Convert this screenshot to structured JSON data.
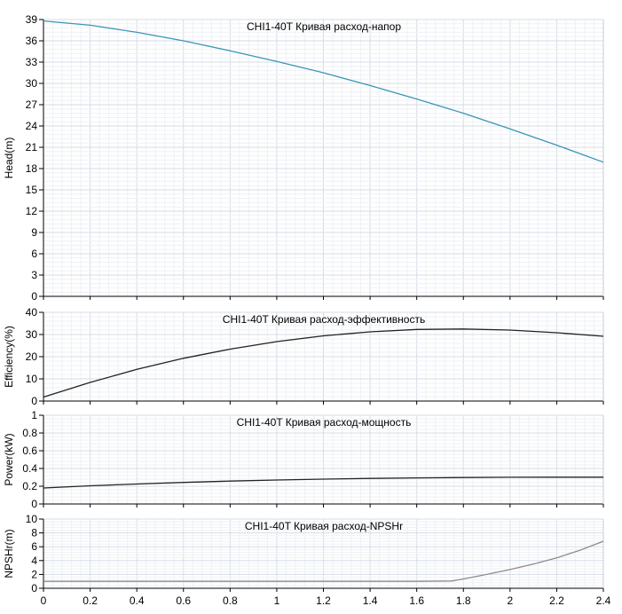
{
  "chart_data": [
    {
      "type": "line",
      "title": "CHI1-40T Кривая расход-напор",
      "ylabel": "Head(m)",
      "xlabel": "",
      "xlim": [
        0,
        2.4
      ],
      "ylim": [
        0,
        39
      ],
      "grid": true,
      "x_ticks": [
        "0",
        "0.2",
        "0.4",
        "0.6",
        "0.8",
        "1",
        "1.2",
        "1.4",
        "1.6",
        "1.8",
        "2",
        "2.2",
        "2.4"
      ],
      "y_ticks": [
        "0",
        "3",
        "6",
        "9",
        "12",
        "15",
        "18",
        "21",
        "24",
        "27",
        "30",
        "33",
        "36",
        "39"
      ],
      "series": [
        {
          "color": "#3a96b8",
          "x": [
            0,
            0.2,
            0.4,
            0.6,
            0.8,
            1.0,
            1.2,
            1.4,
            1.6,
            1.8,
            2.0,
            2.2,
            2.4
          ],
          "y": [
            38.8,
            38.2,
            37.2,
            36.0,
            34.6,
            33.1,
            31.5,
            29.7,
            27.8,
            25.8,
            23.6,
            21.3,
            18.9
          ]
        }
      ]
    },
    {
      "type": "line",
      "title": "CHI1-40T Кривая расход-эффективность",
      "ylabel": "Efficiency(%)",
      "xlabel": "",
      "xlim": [
        0,
        2.4
      ],
      "ylim": [
        0,
        40
      ],
      "grid": true,
      "y_ticks": [
        "0",
        "10",
        "20",
        "30",
        "40"
      ],
      "series": [
        {
          "color": "#222222",
          "x": [
            0,
            0.2,
            0.4,
            0.6,
            0.8,
            1.0,
            1.2,
            1.4,
            1.6,
            1.8,
            2.0,
            2.2,
            2.4
          ],
          "y": [
            1.8,
            8.4,
            14.3,
            19.3,
            23.4,
            26.8,
            29.4,
            31.2,
            32.3,
            32.5,
            32.0,
            30.8,
            29.2
          ]
        }
      ]
    },
    {
      "type": "line",
      "title": "CHI1-40T Кривая расход-мощность",
      "ylabel": "Power(kW)",
      "xlabel": "",
      "xlim": [
        0,
        2.4
      ],
      "ylim": [
        0,
        1
      ],
      "grid": true,
      "y_ticks": [
        "0",
        "0.2",
        "0.4",
        "0.6",
        "0.8",
        "1"
      ],
      "series": [
        {
          "color": "#222222",
          "x": [
            0,
            0.2,
            0.4,
            0.6,
            0.8,
            1.0,
            1.2,
            1.4,
            1.6,
            1.8,
            2.0,
            2.2,
            2.4
          ],
          "y": [
            0.18,
            0.205,
            0.225,
            0.243,
            0.258,
            0.27,
            0.28,
            0.288,
            0.294,
            0.298,
            0.301,
            0.302,
            0.302
          ]
        }
      ]
    },
    {
      "type": "line",
      "title": "CHI1-40T Кривая расход-NPSHr",
      "ylabel": "NPSHr(m)",
      "xlabel": "",
      "xlim": [
        0,
        2.4
      ],
      "ylim": [
        0,
        10
      ],
      "grid": true,
      "x_ticks": [
        "0",
        "0.2",
        "0.4",
        "0.6",
        "0.8",
        "1",
        "1.2",
        "1.4",
        "1.6",
        "1.8",
        "2",
        "2.2",
        "2.4"
      ],
      "y_ticks": [
        "0",
        "2",
        "4",
        "6",
        "8",
        "10"
      ],
      "series": [
        {
          "color": "#8c8c8c",
          "x": [
            0,
            0.2,
            0.4,
            0.6,
            0.8,
            1.0,
            1.2,
            1.4,
            1.6,
            1.75,
            1.8,
            1.9,
            2.0,
            2.1,
            2.2,
            2.3,
            2.4
          ],
          "y": [
            1.0,
            1.0,
            1.0,
            1.0,
            1.0,
            1.0,
            1.0,
            1.0,
            1.0,
            1.05,
            1.35,
            2.0,
            2.7,
            3.5,
            4.4,
            5.5,
            6.8
          ]
        }
      ]
    }
  ]
}
